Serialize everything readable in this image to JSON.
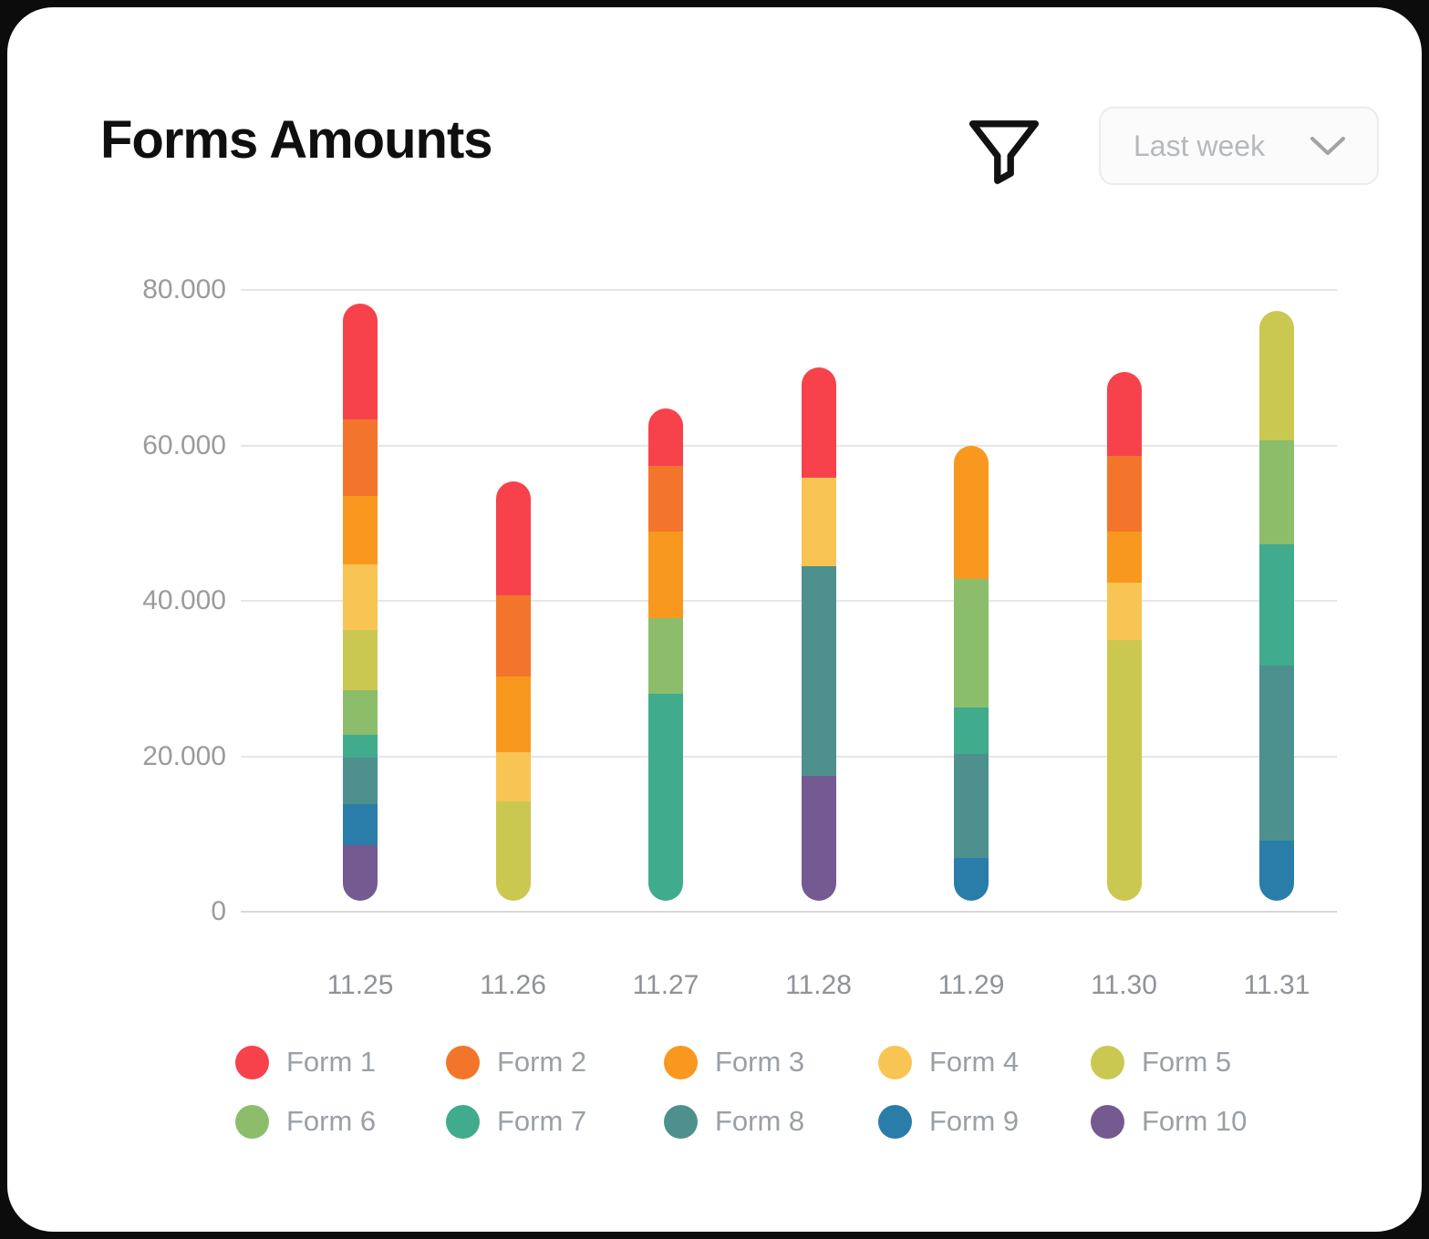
{
  "header": {
    "title": "Forms Amounts",
    "filter_icon": "funnel-icon",
    "range_selector": {
      "value": "Last week"
    }
  },
  "chart_data": {
    "type": "bar",
    "stacked": true,
    "title": "Forms Amounts",
    "categories": [
      "11.25",
      "11.26",
      "11.27",
      "11.28",
      "11.29",
      "11.30",
      "11.31"
    ],
    "series": [
      {
        "name": "Form 1",
        "color": "#F7424C",
        "values": [
          14900,
          14700,
          7400,
          14200,
          0,
          10900,
          0
        ]
      },
      {
        "name": "Form 2",
        "color": "#F3752C",
        "values": [
          9800,
          10400,
          8500,
          0,
          0,
          9700,
          0
        ]
      },
      {
        "name": "Form 3",
        "color": "#F8981E",
        "values": [
          8800,
          9800,
          11100,
          0,
          17200,
          6500,
          0
        ]
      },
      {
        "name": "Form 4",
        "color": "#F8C454",
        "values": [
          8400,
          6300,
          0,
          11300,
          0,
          7400,
          0
        ]
      },
      {
        "name": "Form 5",
        "color": "#CBC851",
        "values": [
          7800,
          14200,
          0,
          0,
          0,
          35000,
          16600
        ]
      },
      {
        "name": "Form 6",
        "color": "#8CBD6B",
        "values": [
          5700,
          0,
          9800,
          0,
          16500,
          0,
          13400
        ]
      },
      {
        "name": "Form 7",
        "color": "#41AB8D",
        "values": [
          3000,
          0,
          28000,
          0,
          6000,
          0,
          15600
        ]
      },
      {
        "name": "Form 8",
        "color": "#4E908E",
        "values": [
          6000,
          0,
          0,
          27000,
          13400,
          0,
          22500
        ]
      },
      {
        "name": "Form 9",
        "color": "#2A7DA9",
        "values": [
          5300,
          0,
          0,
          0,
          6900,
          0,
          9200
        ]
      },
      {
        "name": "Form 10",
        "color": "#745A90",
        "values": [
          8500,
          0,
          0,
          17500,
          0,
          0,
          0
        ]
      }
    ],
    "stack_order": "last-series-at-bottom",
    "yticks": [
      {
        "label": "80.000",
        "value": 80000
      },
      {
        "label": "60.000",
        "value": 60000
      },
      {
        "label": "40.000",
        "value": 40000
      },
      {
        "label": "20.000",
        "value": 20000
      },
      {
        "label": "0",
        "value": 0
      }
    ],
    "ylim": [
      0,
      80000
    ],
    "grid": true,
    "legend_position": "bottom"
  },
  "colors": {
    "page_background": "#0C0C0C",
    "card_background": "#FFFFFF",
    "grid": "#E6E6E6",
    "axis_label": "#9B9B9B",
    "legend_label": "#9AA0A6"
  }
}
